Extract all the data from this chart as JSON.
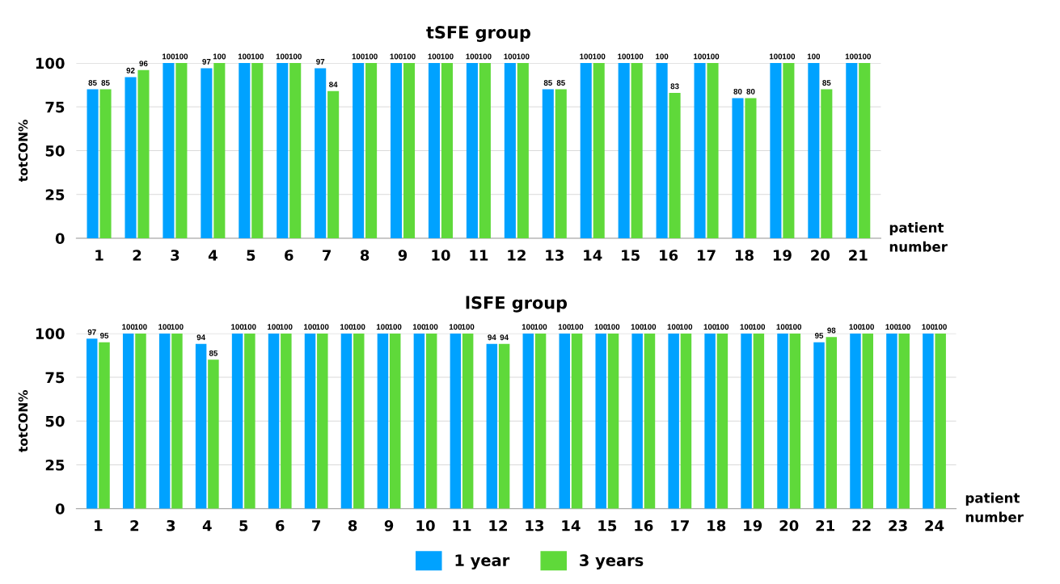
{
  "chart_data": [
    {
      "type": "bar",
      "title": "tSFE group",
      "xlabel": "patient\nnumber",
      "ylabel": "totCON%",
      "categories": [
        "1",
        "2",
        "3",
        "4",
        "5",
        "6",
        "7",
        "8",
        "9",
        "10",
        "11",
        "12",
        "13",
        "14",
        "15",
        "16",
        "17",
        "18",
        "19",
        "20",
        "21"
      ],
      "series": [
        {
          "name": "1 year",
          "color": "#00a2ff",
          "values": [
            85,
            92,
            100,
            97,
            100,
            100,
            97,
            100,
            100,
            100,
            100,
            100,
            85,
            100,
            100,
            100,
            100,
            80,
            100,
            100,
            100
          ]
        },
        {
          "name": "3 years",
          "color": "#5fd93a",
          "values": [
            85,
            96,
            100,
            100,
            100,
            100,
            84,
            100,
            100,
            100,
            100,
            100,
            85,
            100,
            100,
            83,
            100,
            80,
            100,
            85,
            100
          ]
        }
      ],
      "ylim": [
        0,
        100
      ],
      "yticks": [
        0,
        25,
        50,
        75,
        100
      ],
      "grid": "y",
      "data_labels": true,
      "legend": "bottom"
    },
    {
      "type": "bar",
      "title": "lSFE group",
      "xlabel": "patient\nnumber",
      "ylabel": "totCON%",
      "categories": [
        "1",
        "2",
        "3",
        "4",
        "5",
        "6",
        "7",
        "8",
        "9",
        "10",
        "11",
        "12",
        "13",
        "14",
        "15",
        "16",
        "17",
        "18",
        "19",
        "20",
        "21",
        "22",
        "23",
        "24"
      ],
      "series": [
        {
          "color": "#00a2ff",
          "values": [
            97,
            100,
            100,
            94,
            100,
            100,
            100,
            100,
            100,
            100,
            100,
            94,
            100,
            100,
            100,
            100,
            100,
            100,
            100,
            100,
            95,
            100,
            100,
            100
          ]
        },
        {
          "color": "#5fd93a",
          "values": [
            95,
            100,
            100,
            85,
            100,
            100,
            100,
            100,
            100,
            100,
            100,
            94,
            100,
            100,
            100,
            100,
            100,
            100,
            100,
            100,
            98,
            100,
            100,
            100
          ]
        }
      ],
      "ylim": [
        0,
        100
      ],
      "yticks": [
        0,
        25,
        50,
        75,
        100
      ],
      "grid": "y",
      "data_labels": true
    }
  ]
}
